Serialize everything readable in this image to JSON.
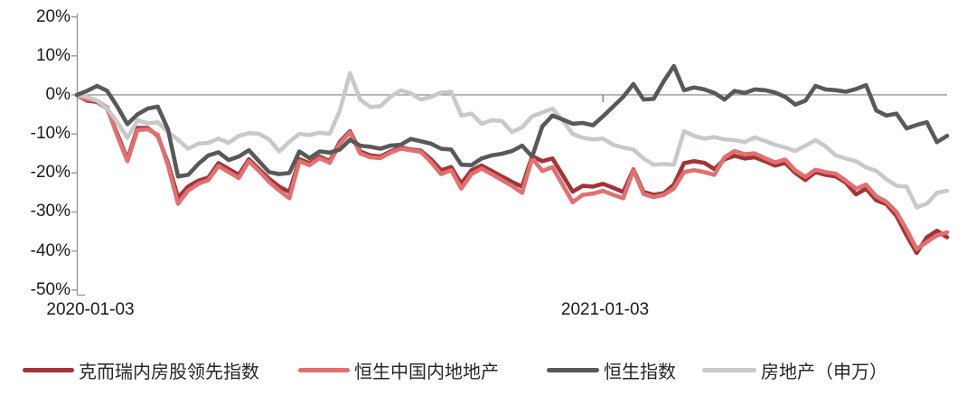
{
  "chart_data": {
    "type": "line",
    "title": "",
    "ylabel": "",
    "xlabel": "",
    "grid": "zero-line-only",
    "legend_position": "bottom",
    "y_axis": {
      "min": -50,
      "max": 20,
      "unit": "%",
      "tick_labels": [
        "20%",
        "10%",
        "0%",
        "-10%",
        "-20%",
        "-30%",
        "-40%",
        "-50%"
      ],
      "tick_values": [
        20,
        10,
        0,
        -10,
        -20,
        -30,
        -40,
        -50
      ]
    },
    "x_axis": {
      "tick_labels": [
        "2020-01-03",
        "2021-01-03"
      ],
      "tick_point_indices": [
        0,
        52
      ],
      "frequency": "weekly",
      "n_points": 87
    },
    "colors": {
      "axis": "#999999",
      "zero_line": "#808080",
      "label_text": "#1a1a1a"
    },
    "series": [
      {
        "name": "克而瑞内房股领先指数",
        "color": "#A23439",
        "values": [
          0,
          -1.5,
          -1.8,
          -3.5,
          -10,
          -16.5,
          -8.5,
          -8.5,
          -10.5,
          -17.4,
          -26.3,
          -23.5,
          -22,
          -21.2,
          -17.5,
          -19,
          -20.5,
          -16.5,
          -19,
          -21.5,
          -23.5,
          -24.9,
          -16.5,
          -17.5,
          -15.8,
          -17,
          -12,
          -9.3,
          -14.5,
          -15.5,
          -15.8,
          -14.5,
          -13.5,
          -14,
          -14.3,
          -16.5,
          -19.3,
          -18.5,
          -22.8,
          -19.3,
          -18.1,
          -19.5,
          -20.9,
          -22.3,
          -23.5,
          -15.7,
          -17,
          -16.3,
          -20.5,
          -24.8,
          -23.3,
          -23.5,
          -22.8,
          -23.8,
          -24.9,
          -19.1,
          -24.9,
          -25.6,
          -25.2,
          -23,
          -17.5,
          -17,
          -17.4,
          -19,
          -16.5,
          -15.6,
          -16.3,
          -16,
          -17,
          -18.1,
          -17.4,
          -20,
          -21.8,
          -19.8,
          -20.5,
          -20.9,
          -22.5,
          -25.5,
          -24,
          -27,
          -28,
          -31,
          -36,
          -40.5,
          -36.5,
          -34.8,
          -36.5
        ]
      },
      {
        "name": "恒生中国内地地产",
        "color": "#E27070",
        "values": [
          0,
          -1.2,
          -1.5,
          -3.2,
          -10.5,
          -17,
          -9,
          -8.8,
          -10.2,
          -18,
          -27.9,
          -24.5,
          -22.8,
          -21.8,
          -18.2,
          -19.8,
          -21.3,
          -17,
          -19.5,
          -22.3,
          -24.5,
          -26.5,
          -17,
          -18,
          -16.2,
          -17.4,
          -12.5,
          -9.6,
          -15,
          -16,
          -16.2,
          -14.8,
          -13.8,
          -14.2,
          -14.6,
          -17.2,
          -20.3,
          -19.3,
          -24,
          -20.3,
          -18.9,
          -20.3,
          -21.8,
          -23.3,
          -25.1,
          -16.2,
          -19.5,
          -18.5,
          -23,
          -27.5,
          -25.6,
          -25.3,
          -24.6,
          -25.6,
          -26.5,
          -19.3,
          -25.4,
          -26.2,
          -25.6,
          -24,
          -19.8,
          -19.3,
          -19.8,
          -20.5,
          -16,
          -14.4,
          -15.2,
          -15,
          -16.2,
          -17.3,
          -16.6,
          -19.3,
          -21,
          -19.2,
          -19.8,
          -20.2,
          -22,
          -24,
          -23,
          -26,
          -27.4,
          -30,
          -34.5,
          -39.5,
          -37.7,
          -36,
          -35.2
        ]
      },
      {
        "name": "恒生指数",
        "color": "#595959",
        "values": [
          0,
          1,
          2.3,
          1,
          -3,
          -7.5,
          -5,
          -3.5,
          -3,
          -8.8,
          -20.9,
          -20.5,
          -17.7,
          -15.5,
          -14.7,
          -16.7,
          -15.8,
          -14.2,
          -17,
          -19.8,
          -20.3,
          -20,
          -14.5,
          -16.2,
          -14.5,
          -14.8,
          -14,
          -11.5,
          -13,
          -13.3,
          -13.8,
          -13,
          -12.8,
          -11.3,
          -11.9,
          -12.5,
          -13.8,
          -14,
          -17.9,
          -18,
          -16.3,
          -15.5,
          -15.1,
          -14.4,
          -13,
          -15.8,
          -8.1,
          -5.3,
          -6.3,
          -7.4,
          -7.2,
          -7.8,
          -5.5,
          -3,
          -0.5,
          2.8,
          -1.2,
          -1,
          3.5,
          7.4,
          1.2,
          1.9,
          1.4,
          0.5,
          -1.2,
          1,
          0.5,
          1.4,
          1.2,
          0.6,
          -0.5,
          -2.5,
          -1.5,
          2.3,
          1.4,
          1.2,
          0.8,
          1.5,
          2.5,
          -4,
          -5.3,
          -4.8,
          -8.6,
          -7.7,
          -7,
          -12.1,
          -10.5
        ]
      },
      {
        "name": "房地产（申万）",
        "color": "#C9C9C9",
        "values": [
          0,
          -0.5,
          -1.5,
          -3.5,
          -7,
          -11,
          -6.5,
          -7.3,
          -7,
          -9.5,
          -11.5,
          -13.8,
          -12.5,
          -12.3,
          -11.2,
          -12.3,
          -10.5,
          -9.8,
          -10,
          -11.4,
          -14.5,
          -12,
          -10,
          -10.3,
          -9.7,
          -10,
          -4,
          5.6,
          -1.2,
          -3.1,
          -2.9,
          -0.5,
          1.2,
          0.4,
          -1.2,
          -0.5,
          0.6,
          0.8,
          -5.3,
          -4.8,
          -7.4,
          -6.5,
          -6.7,
          -9.5,
          -8.3,
          -5.5,
          -4.5,
          -3.5,
          -6.5,
          -10,
          -11,
          -11.4,
          -11.2,
          -12.8,
          -13.5,
          -14,
          -16.3,
          -17.9,
          -17.7,
          -17.9,
          -9.3,
          -10.5,
          -11.2,
          -10.8,
          -11.4,
          -11.6,
          -12.1,
          -10.9,
          -11.8,
          -12.8,
          -13.5,
          -14.4,
          -13,
          -11.6,
          -13.2,
          -15.5,
          -16.3,
          -17,
          -18.6,
          -19.5,
          -21.6,
          -23.3,
          -23.5,
          -28.8,
          -27.9,
          -25.1,
          -24.6
        ]
      }
    ]
  }
}
